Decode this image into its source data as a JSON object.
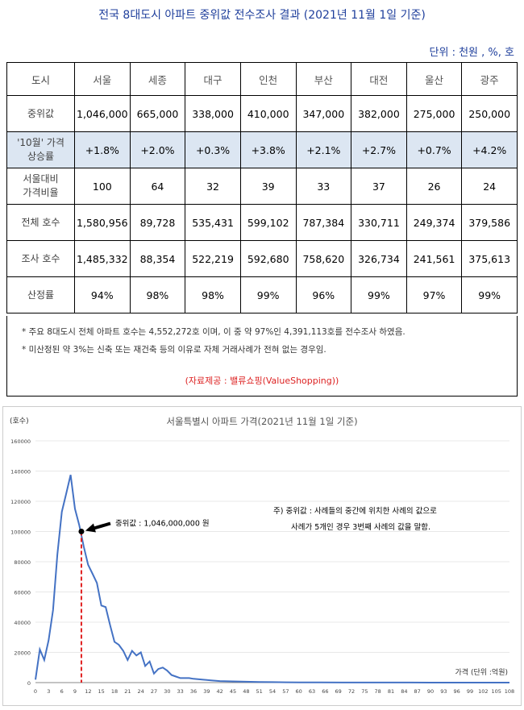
{
  "title": "전국 8대도시 아파트 중위값 전수조사 결과  (2021년 11월 1일 기준)",
  "unit": "단위 : 천원 , %, 호",
  "table": {
    "corner": "도시",
    "cities": [
      "서울",
      "세종",
      "대구",
      "인천",
      "부산",
      "대전",
      "울산",
      "광주"
    ],
    "rows": [
      {
        "label": "중위값",
        "values": [
          "1,046,000",
          "665,000",
          "338,000",
          "410,000",
          "347,000",
          "382,000",
          "275,000",
          "250,000"
        ]
      },
      {
        "label_line1": "'10월' 가격",
        "label_line2": "상승률",
        "values": [
          "+1.8%",
          "+2.0%",
          "+0.3%",
          "+3.8%",
          "+2.1%",
          "+2.7%",
          "+0.7%",
          "+4.2%"
        ]
      },
      {
        "label_line1": "서울대비",
        "label_line2": "가격비율",
        "values": [
          "100",
          "64",
          "32",
          "39",
          "33",
          "37",
          "26",
          "24"
        ]
      },
      {
        "label": "전체 호수",
        "values": [
          "1,580,956",
          "89,728",
          "535,431",
          "599,102",
          "787,384",
          "330,711",
          "249,374",
          "379,586"
        ]
      },
      {
        "label": "조사 호수",
        "values": [
          "1,485,332",
          "88,354",
          "522,219",
          "592,680",
          "758,620",
          "326,734",
          "241,561",
          "375,613"
        ]
      },
      {
        "label": "산정률",
        "values": [
          "94%",
          "98%",
          "98%",
          "99%",
          "96%",
          "99%",
          "97%",
          "99%"
        ]
      }
    ]
  },
  "notes": {
    "note1": "* 주요 8대도시 전체 아파트 호수는 4,552,272호 이며, 이 중 약 97%인 4,391,113호를 전수조사 하였음.",
    "note2": "* 미산정된 약 3%는 신축 또는 재건축 등의 이유로 자체 거래사례가 전혀 없는 경우임.",
    "source": "(자료제공 : 밸류쇼핑(ValueShopping))"
  },
  "chart_data": {
    "type": "line",
    "title": "서울특별시 아파트 가격(2021년 11월 1일 기준)",
    "ylabel": "(호수)",
    "xlabel": "가격 (단위 :억원)",
    "ylim": [
      0,
      160000
    ],
    "yticks": [
      "0",
      "20000",
      "40000",
      "60000",
      "80000",
      "100000",
      "120000",
      "140000",
      "160000"
    ],
    "xlim": [
      0,
      108
    ],
    "xticks": [
      "0",
      "3",
      "6",
      "9",
      "12",
      "15",
      "18",
      "21",
      "24",
      "27",
      "30",
      "33",
      "36",
      "39",
      "42",
      "45",
      "48",
      "51",
      "54",
      "57",
      "60",
      "63",
      "66",
      "69",
      "72",
      "75",
      "78",
      "81",
      "84",
      "87",
      "90",
      "93",
      "96",
      "99",
      "102",
      "105",
      "108"
    ],
    "x": [
      0,
      1,
      2,
      3,
      4,
      5,
      6,
      7,
      8,
      9,
      10,
      11,
      12,
      13,
      14,
      15,
      16,
      17,
      18,
      19,
      20,
      21,
      22,
      23,
      24,
      25,
      26,
      27,
      28,
      29,
      30,
      31,
      32,
      33,
      34,
      35,
      36,
      38,
      40,
      42,
      45,
      48,
      51,
      54,
      57,
      60,
      65,
      70,
      75,
      80,
      85,
      90,
      95,
      100,
      105,
      108
    ],
    "y": [
      2000,
      22000,
      15000,
      28000,
      48000,
      85000,
      113000,
      125000,
      137500,
      115000,
      104000,
      90000,
      78000,
      72000,
      66000,
      51000,
      50000,
      38000,
      27000,
      25000,
      21000,
      15000,
      21000,
      18000,
      20000,
      11000,
      14000,
      6000,
      9000,
      10000,
      8000,
      5000,
      4000,
      3000,
      3000,
      3000,
      2500,
      2000,
      1500,
      1000,
      800,
      600,
      400,
      300,
      200,
      150,
      100,
      80,
      60,
      40,
      30,
      20,
      15,
      10,
      5,
      0
    ],
    "median_line_x": 10.46,
    "median_point": {
      "x": 10.46,
      "y": 100000
    },
    "median_label": "중위값 : 1,046,000,000  원",
    "note_line1": "주) 중위값 : 사례들의 중간에 위치한 사례의 값으로",
    "note_line2": "사례가 5개인 경우 3번째 사례의 값을 말함.",
    "line_color": "#4472c4",
    "median_color": "#e02020"
  }
}
